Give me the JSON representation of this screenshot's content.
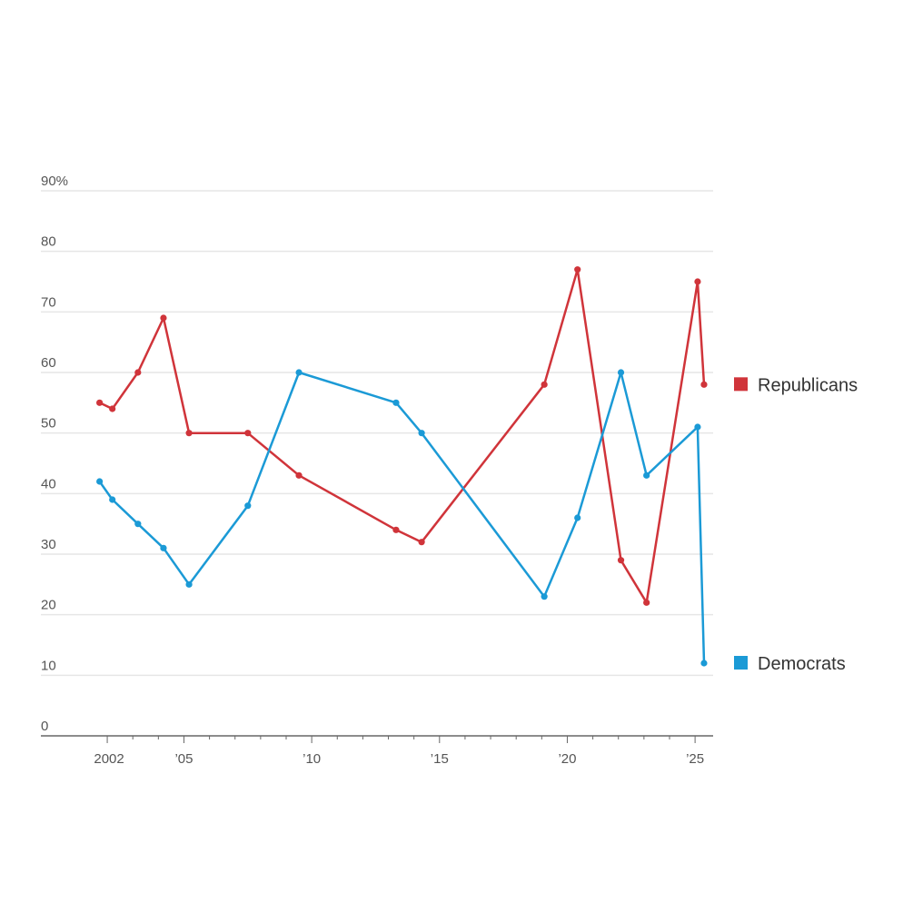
{
  "chart_data": {
    "type": "line",
    "title": "",
    "xlabel": "",
    "ylabel": "",
    "ylim": [
      0,
      90
    ],
    "xlim": [
      2001.5,
      2025.6
    ],
    "y_ticks": [
      0,
      10,
      20,
      30,
      40,
      50,
      60,
      70,
      80,
      90
    ],
    "y_tick_labels": [
      "0",
      "10",
      "20",
      "30",
      "40",
      "50",
      "60",
      "70",
      "80",
      "90%"
    ],
    "x_ticks": [
      2002,
      2005,
      2010,
      2015,
      2020,
      2025
    ],
    "x_tick_labels": [
      "2002",
      "’05",
      "’10",
      "’15",
      "’20",
      "’25"
    ],
    "grid": true,
    "legend_placement": "right",
    "series": [
      {
        "name": "Republicans",
        "color": "#d0343a",
        "x": [
          2001.7,
          2002.2,
          2003.2,
          2004.2,
          2005.2,
          2007.5,
          2009.5,
          2013.3,
          2014.3,
          2019.1,
          2020.4,
          2022.1,
          2023.1,
          2025.1,
          2025.35
        ],
        "values": [
          55,
          54,
          60,
          69,
          50,
          50,
          43,
          34,
          32,
          58,
          77,
          29,
          22,
          75,
          58
        ]
      },
      {
        "name": "Democrats",
        "color": "#1b9ad6",
        "x": [
          2001.7,
          2002.2,
          2003.2,
          2004.2,
          2005.2,
          2007.5,
          2009.5,
          2013.3,
          2014.3,
          2019.1,
          2020.4,
          2022.1,
          2023.1,
          2025.1,
          2025.35
        ],
        "values": [
          42,
          39,
          35,
          31,
          25,
          38,
          60,
          55,
          50,
          23,
          36,
          60,
          43,
          51,
          12
        ]
      }
    ]
  }
}
